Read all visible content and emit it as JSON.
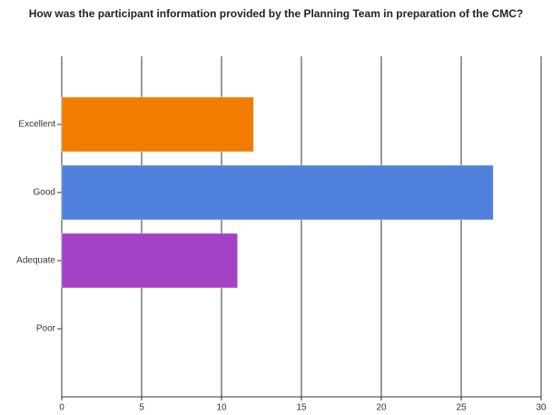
{
  "chart_data": {
    "type": "barh",
    "title": "How was the participant information provided by the Planning Team in preparation of the CMC?",
    "categories": [
      "Excellent",
      "Good",
      "Adequate",
      "Poor"
    ],
    "values": [
      12,
      27,
      11,
      0
    ],
    "colors": [
      "#f07d00",
      "#4f80dc",
      "#a541c6",
      "#888888"
    ],
    "xlim": [
      0,
      30
    ],
    "xticks": [
      0,
      5,
      10,
      15,
      20,
      25,
      30
    ],
    "grid": true
  }
}
